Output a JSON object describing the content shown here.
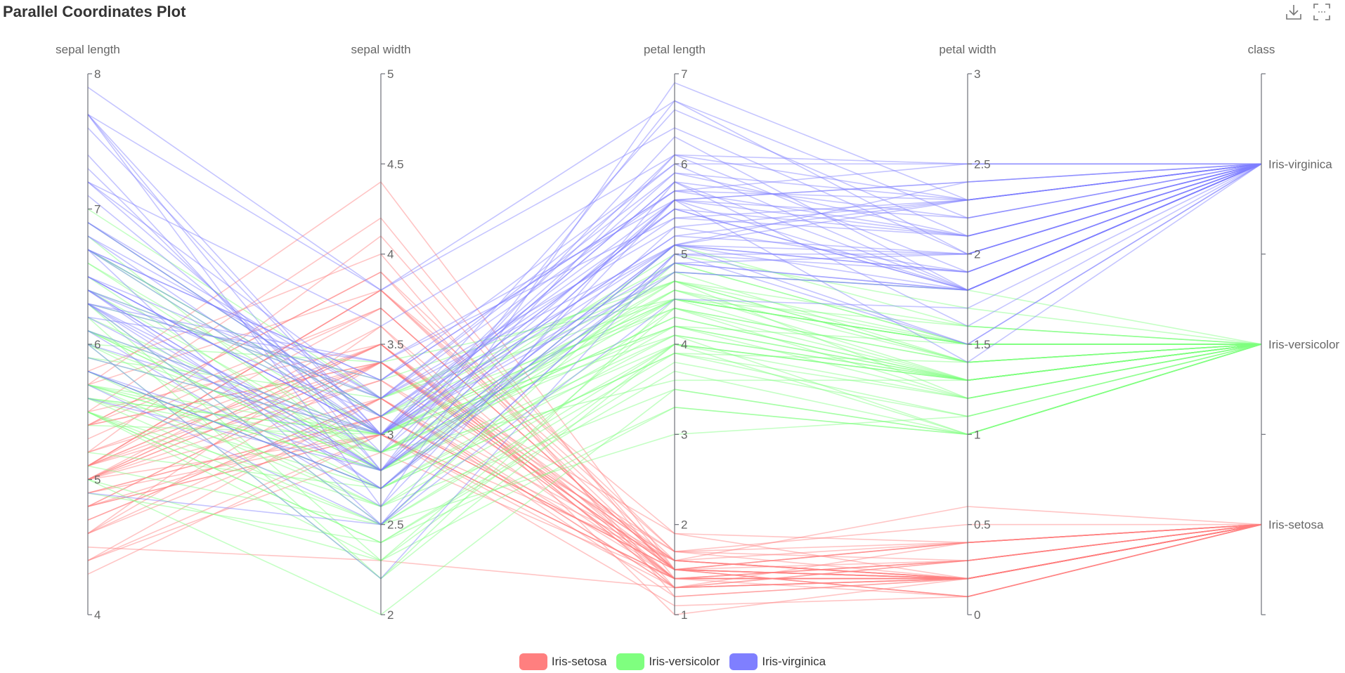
{
  "chart_data": {
    "type": "parallel",
    "title": "Parallel Coordinates Plot",
    "axes": [
      {
        "name": "sepal length",
        "min": 4,
        "max": 8,
        "ticks": [
          4,
          5,
          6,
          7,
          8
        ]
      },
      {
        "name": "sepal width",
        "min": 2,
        "max": 5,
        "ticks": [
          2,
          2.5,
          3,
          3.5,
          4,
          4.5,
          5
        ]
      },
      {
        "name": "petal length",
        "min": 1,
        "max": 7,
        "ticks": [
          1,
          2,
          3,
          4,
          5,
          6,
          7
        ]
      },
      {
        "name": "petal width",
        "min": 0,
        "max": 3,
        "ticks": [
          0,
          0.5,
          1,
          1.5,
          2,
          2.5,
          3
        ]
      },
      {
        "name": "class",
        "categorical": true,
        "categories": [
          "Iris-setosa",
          "Iris-versicolor",
          "Iris-virginica"
        ]
      }
    ],
    "legend": {
      "position": "bottom-center",
      "entries": [
        "Iris-setosa",
        "Iris-versicolor",
        "Iris-virginica"
      ]
    },
    "colors": {
      "Iris-setosa": "#ff7f7f",
      "Iris-versicolor": "#7fff7f",
      "Iris-virginica": "#7f7fff"
    },
    "series": [
      {
        "name": "Iris-setosa",
        "values": [
          [
            5.1,
            3.5,
            1.4,
            0.2
          ],
          [
            4.9,
            3.0,
            1.4,
            0.2
          ],
          [
            4.7,
            3.2,
            1.3,
            0.2
          ],
          [
            4.6,
            3.1,
            1.5,
            0.2
          ],
          [
            5.0,
            3.6,
            1.4,
            0.2
          ],
          [
            5.4,
            3.9,
            1.7,
            0.4
          ],
          [
            4.6,
            3.4,
            1.4,
            0.3
          ],
          [
            5.0,
            3.4,
            1.5,
            0.2
          ],
          [
            4.4,
            2.9,
            1.4,
            0.2
          ],
          [
            4.9,
            3.1,
            1.5,
            0.1
          ],
          [
            5.4,
            3.7,
            1.5,
            0.2
          ],
          [
            4.8,
            3.4,
            1.6,
            0.2
          ],
          [
            4.8,
            3.0,
            1.4,
            0.1
          ],
          [
            4.3,
            3.0,
            1.1,
            0.1
          ],
          [
            5.8,
            4.0,
            1.2,
            0.2
          ],
          [
            5.7,
            4.4,
            1.5,
            0.4
          ],
          [
            5.4,
            3.9,
            1.3,
            0.4
          ],
          [
            5.1,
            3.5,
            1.4,
            0.3
          ],
          [
            5.7,
            3.8,
            1.7,
            0.3
          ],
          [
            5.1,
            3.8,
            1.5,
            0.3
          ],
          [
            5.4,
            3.4,
            1.7,
            0.2
          ],
          [
            5.1,
            3.7,
            1.5,
            0.4
          ],
          [
            4.6,
            3.6,
            1.0,
            0.2
          ],
          [
            5.1,
            3.3,
            1.7,
            0.5
          ],
          [
            4.8,
            3.4,
            1.9,
            0.2
          ],
          [
            5.0,
            3.0,
            1.6,
            0.2
          ],
          [
            5.0,
            3.4,
            1.6,
            0.4
          ],
          [
            5.2,
            3.5,
            1.5,
            0.2
          ],
          [
            5.2,
            3.4,
            1.4,
            0.2
          ],
          [
            4.7,
            3.2,
            1.6,
            0.2
          ],
          [
            4.8,
            3.1,
            1.6,
            0.2
          ],
          [
            5.4,
            3.4,
            1.5,
            0.4
          ],
          [
            5.2,
            4.1,
            1.5,
            0.1
          ],
          [
            5.5,
            4.2,
            1.4,
            0.2
          ],
          [
            4.9,
            3.1,
            1.5,
            0.1
          ],
          [
            5.0,
            3.2,
            1.2,
            0.2
          ],
          [
            5.5,
            3.5,
            1.3,
            0.2
          ],
          [
            4.4,
            3.0,
            1.3,
            0.2
          ],
          [
            5.1,
            3.4,
            1.5,
            0.2
          ],
          [
            5.0,
            3.5,
            1.3,
            0.3
          ],
          [
            4.5,
            2.3,
            1.3,
            0.3
          ],
          [
            4.4,
            3.2,
            1.3,
            0.2
          ],
          [
            5.0,
            3.5,
            1.6,
            0.6
          ],
          [
            5.1,
            3.8,
            1.9,
            0.4
          ],
          [
            4.8,
            3.0,
            1.4,
            0.3
          ],
          [
            5.1,
            3.8,
            1.6,
            0.2
          ],
          [
            4.6,
            3.2,
            1.4,
            0.2
          ],
          [
            5.3,
            3.7,
            1.5,
            0.2
          ],
          [
            5.0,
            3.3,
            1.4,
            0.2
          ]
        ]
      },
      {
        "name": "Iris-versicolor",
        "values": [
          [
            7.0,
            3.2,
            4.7,
            1.4
          ],
          [
            6.4,
            3.2,
            4.5,
            1.5
          ],
          [
            6.9,
            3.1,
            4.9,
            1.5
          ],
          [
            5.5,
            2.3,
            4.0,
            1.3
          ],
          [
            6.5,
            2.8,
            4.6,
            1.5
          ],
          [
            5.7,
            2.8,
            4.5,
            1.3
          ],
          [
            6.3,
            3.3,
            4.7,
            1.6
          ],
          [
            4.9,
            2.4,
            3.3,
            1.0
          ],
          [
            6.6,
            2.9,
            4.6,
            1.3
          ],
          [
            5.2,
            2.7,
            3.9,
            1.4
          ],
          [
            5.0,
            2.0,
            3.5,
            1.0
          ],
          [
            5.9,
            3.0,
            4.2,
            1.5
          ],
          [
            6.0,
            2.2,
            4.0,
            1.0
          ],
          [
            6.1,
            2.9,
            4.7,
            1.4
          ],
          [
            5.6,
            2.9,
            3.6,
            1.3
          ],
          [
            6.7,
            3.1,
            4.4,
            1.4
          ],
          [
            5.6,
            3.0,
            4.5,
            1.5
          ],
          [
            5.8,
            2.7,
            4.1,
            1.0
          ],
          [
            6.2,
            2.2,
            4.5,
            1.5
          ],
          [
            5.6,
            2.5,
            3.9,
            1.1
          ],
          [
            5.9,
            3.2,
            4.8,
            1.8
          ],
          [
            6.1,
            2.8,
            4.0,
            1.3
          ],
          [
            6.3,
            2.5,
            4.9,
            1.5
          ],
          [
            6.1,
            2.8,
            4.7,
            1.2
          ],
          [
            6.4,
            2.9,
            4.3,
            1.3
          ],
          [
            6.6,
            3.0,
            4.4,
            1.4
          ],
          [
            6.8,
            2.8,
            4.8,
            1.4
          ],
          [
            6.7,
            3.0,
            5.0,
            1.7
          ],
          [
            6.0,
            2.9,
            4.5,
            1.5
          ],
          [
            5.7,
            2.6,
            3.5,
            1.0
          ],
          [
            5.5,
            2.4,
            3.8,
            1.1
          ],
          [
            5.5,
            2.4,
            3.7,
            1.0
          ],
          [
            5.8,
            2.7,
            3.9,
            1.2
          ],
          [
            6.0,
            2.7,
            5.1,
            1.6
          ],
          [
            5.4,
            3.0,
            4.5,
            1.5
          ],
          [
            6.0,
            3.4,
            4.5,
            1.6
          ],
          [
            6.7,
            3.1,
            4.7,
            1.5
          ],
          [
            6.3,
            2.3,
            4.4,
            1.3
          ],
          [
            5.6,
            3.0,
            4.1,
            1.3
          ],
          [
            5.5,
            2.5,
            4.0,
            1.3
          ],
          [
            5.5,
            2.6,
            4.4,
            1.2
          ],
          [
            6.1,
            3.0,
            4.6,
            1.4
          ],
          [
            5.8,
            2.6,
            4.0,
            1.2
          ],
          [
            5.0,
            2.3,
            3.3,
            1.0
          ],
          [
            5.6,
            2.7,
            4.2,
            1.3
          ],
          [
            5.7,
            3.0,
            4.2,
            1.2
          ],
          [
            5.7,
            2.9,
            4.2,
            1.3
          ],
          [
            6.2,
            2.9,
            4.3,
            1.3
          ],
          [
            5.1,
            2.5,
            3.0,
            1.1
          ],
          [
            5.7,
            2.8,
            4.1,
            1.3
          ]
        ]
      },
      {
        "name": "Iris-virginica",
        "values": [
          [
            6.3,
            3.3,
            6.0,
            2.5
          ],
          [
            5.8,
            2.7,
            5.1,
            1.9
          ],
          [
            7.1,
            3.0,
            5.9,
            2.1
          ],
          [
            6.3,
            2.9,
            5.6,
            1.8
          ],
          [
            6.5,
            3.0,
            5.8,
            2.2
          ],
          [
            7.6,
            3.0,
            6.6,
            2.1
          ],
          [
            4.9,
            2.5,
            4.5,
            1.7
          ],
          [
            7.3,
            2.9,
            6.3,
            1.8
          ],
          [
            6.7,
            2.5,
            5.8,
            1.8
          ],
          [
            7.2,
            3.6,
            6.1,
            2.5
          ],
          [
            6.5,
            3.2,
            5.1,
            2.0
          ],
          [
            6.4,
            2.7,
            5.3,
            1.9
          ],
          [
            6.8,
            3.0,
            5.5,
            2.1
          ],
          [
            5.7,
            2.5,
            5.0,
            2.0
          ],
          [
            5.8,
            2.8,
            5.1,
            2.4
          ],
          [
            6.4,
            3.2,
            5.3,
            2.3
          ],
          [
            6.5,
            3.0,
            5.5,
            1.8
          ],
          [
            7.7,
            3.8,
            6.7,
            2.2
          ],
          [
            7.7,
            2.6,
            6.9,
            2.3
          ],
          [
            6.0,
            2.2,
            5.0,
            1.5
          ],
          [
            6.9,
            3.2,
            5.7,
            2.3
          ],
          [
            5.6,
            2.8,
            4.9,
            2.0
          ],
          [
            7.7,
            2.8,
            6.7,
            2.0
          ],
          [
            6.3,
            2.7,
            4.9,
            1.8
          ],
          [
            6.7,
            3.3,
            5.7,
            2.1
          ],
          [
            7.2,
            3.2,
            6.0,
            1.8
          ],
          [
            6.2,
            2.8,
            4.8,
            1.8
          ],
          [
            6.1,
            3.0,
            4.9,
            1.8
          ],
          [
            6.4,
            2.8,
            5.6,
            2.1
          ],
          [
            7.2,
            3.0,
            5.8,
            1.6
          ],
          [
            7.4,
            2.8,
            6.1,
            1.9
          ],
          [
            7.9,
            3.8,
            6.4,
            2.0
          ],
          [
            6.4,
            2.8,
            5.6,
            2.2
          ],
          [
            6.3,
            2.8,
            5.1,
            1.5
          ],
          [
            6.1,
            2.6,
            5.6,
            1.4
          ],
          [
            7.7,
            3.0,
            6.1,
            2.3
          ],
          [
            6.3,
            3.4,
            5.6,
            2.4
          ],
          [
            6.4,
            3.1,
            5.5,
            1.8
          ],
          [
            6.0,
            3.0,
            4.8,
            1.8
          ],
          [
            6.9,
            3.1,
            5.4,
            2.1
          ],
          [
            6.7,
            3.1,
            5.6,
            2.4
          ],
          [
            6.9,
            3.1,
            5.1,
            2.3
          ],
          [
            5.8,
            2.7,
            5.1,
            1.9
          ],
          [
            6.8,
            3.2,
            5.9,
            2.3
          ],
          [
            6.7,
            3.3,
            5.7,
            2.5
          ],
          [
            6.7,
            3.0,
            5.2,
            2.3
          ],
          [
            6.3,
            2.5,
            5.0,
            1.9
          ],
          [
            6.5,
            3.0,
            5.2,
            2.0
          ],
          [
            6.2,
            3.4,
            5.4,
            2.3
          ],
          [
            5.9,
            3.0,
            5.1,
            1.8
          ]
        ]
      }
    ]
  }
}
